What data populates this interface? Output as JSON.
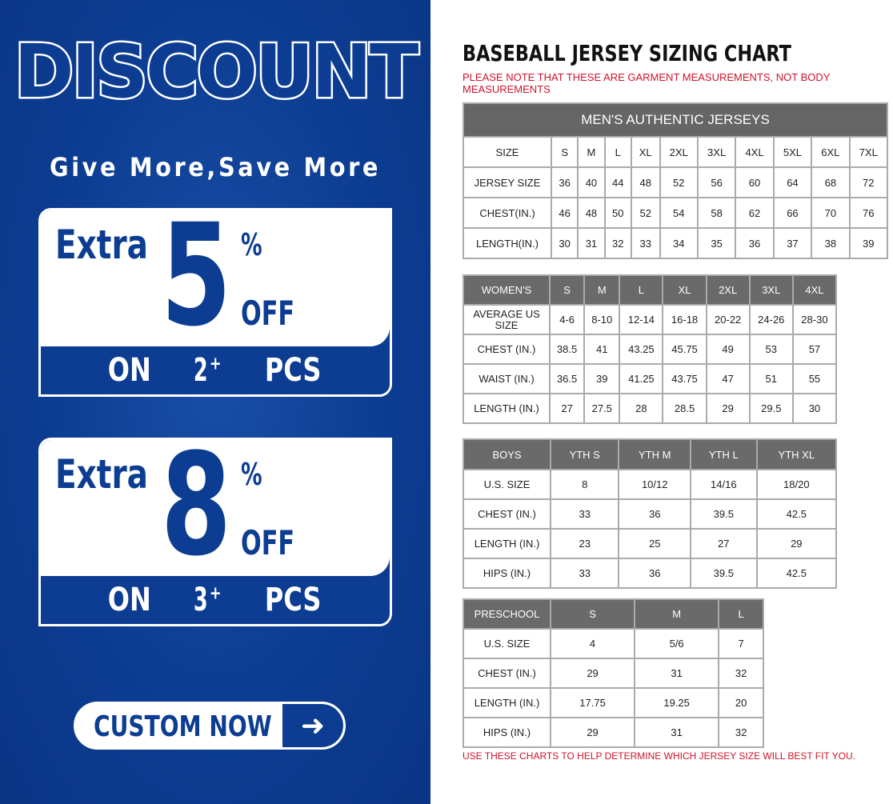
{
  "promo": {
    "heading": "DISCOUNT",
    "tagline": "Give More,Save More",
    "offers": [
      {
        "extra": "Extra",
        "number": "5",
        "percent": "%",
        "off": "OFF",
        "on": "ON",
        "qty": "2",
        "plus": "+",
        "pcs": "PCS"
      },
      {
        "extra": "Extra",
        "number": "8",
        "percent": "%",
        "off": "OFF",
        "on": "ON",
        "qty": "3",
        "plus": "+",
        "pcs": "PCS"
      }
    ],
    "cta": "CUSTOM NOW",
    "cta_icon": "arrow-right-icon",
    "colors": {
      "brand_blue": "#0c3d92",
      "note_red": "#d0122a",
      "header_gray": "#6a6a6a"
    }
  },
  "chart": {
    "title": "BASEBALL JERSEY SIZING CHART",
    "note": "PLEASE NOTE THAT THESE ARE GARMENT MEASUREMENTS, NOT BODY MEASUREMENTS",
    "footnote": "USE THESE CHARTS TO HELP DETERMINE WHICH JERSEY SIZE WILL BEST FIT YOU."
  },
  "tables": [
    {
      "id": "mens",
      "caption": "MEN'S AUTHENTIC JERSEYS",
      "header": null,
      "rows": [
        [
          "SIZE",
          "S",
          "M",
          "L",
          "XL",
          "2XL",
          "3XL",
          "4XL",
          "5XL",
          "6XL",
          "7XL"
        ],
        [
          "JERSEY SIZE",
          "36",
          "40",
          "44",
          "48",
          "52",
          "56",
          "60",
          "64",
          "68",
          "72"
        ],
        [
          "CHEST(IN.)",
          "46",
          "48",
          "50",
          "52",
          "54",
          "58",
          "62",
          "66",
          "70",
          "76"
        ],
        [
          "LENGTH(IN.)",
          "30",
          "31",
          "32",
          "33",
          "34",
          "35",
          "36",
          "37",
          "38",
          "39"
        ]
      ]
    },
    {
      "id": "womens",
      "caption": null,
      "header": [
        "WOMEN'S",
        "S",
        "M",
        "L",
        "XL",
        "2XL",
        "3XL",
        "4XL"
      ],
      "rows": [
        [
          "AVERAGE US SIZE",
          "4-6",
          "8-10",
          "12-14",
          "16-18",
          "20-22",
          "24-26",
          "28-30"
        ],
        [
          "CHEST (IN.)",
          "38.5",
          "41",
          "43.25",
          "45.75",
          "49",
          "53",
          "57"
        ],
        [
          "WAIST (IN.)",
          "36.5",
          "39",
          "41.25",
          "43.75",
          "47",
          "51",
          "55"
        ],
        [
          "LENGTH (IN.)",
          "27",
          "27.5",
          "28",
          "28.5",
          "29",
          "29.5",
          "30"
        ]
      ]
    },
    {
      "id": "boys",
      "caption": null,
      "header": [
        "BOYS",
        "YTH S",
        "YTH M",
        "YTH L",
        "YTH XL"
      ],
      "rows": [
        [
          "U.S. SIZE",
          "8",
          "10/12",
          "14/16",
          "18/20"
        ],
        [
          "CHEST (IN.)",
          "33",
          "36",
          "39.5",
          "42.5"
        ],
        [
          "LENGTH (IN.)",
          "23",
          "25",
          "27",
          "29"
        ],
        [
          "HIPS (IN.)",
          "33",
          "36",
          "39.5",
          "42.5"
        ]
      ]
    },
    {
      "id": "preschool",
      "caption": null,
      "header": [
        "PRESCHOOL",
        "S",
        "M",
        "L"
      ],
      "rows": [
        [
          "U.S. SIZE",
          "4",
          "5/6",
          "7"
        ],
        [
          "CHEST (IN.)",
          "29",
          "31",
          "32"
        ],
        [
          "LENGTH (IN.)",
          "17.75",
          "19.25",
          "20"
        ],
        [
          "HIPS (IN.)",
          "29",
          "31",
          "32"
        ]
      ]
    }
  ]
}
